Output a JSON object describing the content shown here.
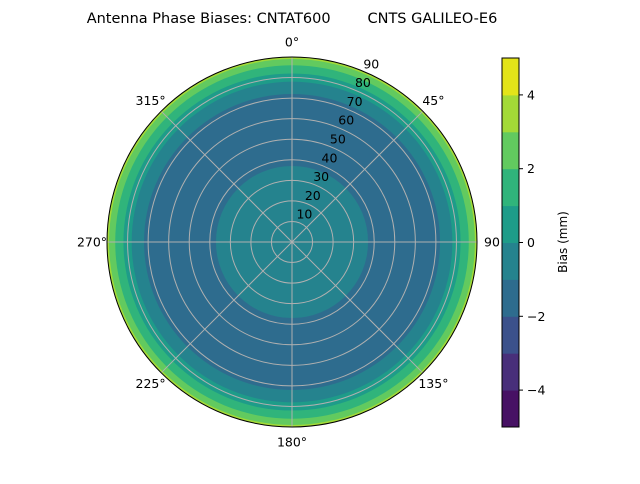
{
  "chart_data": {
    "type": "heatmap",
    "projection": "polar",
    "title": "Antenna Phase Biases: CNTAT600        CNTS GALILEO-E6",
    "theta_direction": "clockwise",
    "theta_zero": "top",
    "theta_ticks": [
      "0°",
      "45°",
      "90",
      "135°",
      "180°",
      "225°",
      "270°",
      "315°"
    ],
    "theta_tick_angles": [
      0,
      45,
      90,
      135,
      180,
      225,
      270,
      315
    ],
    "r_ticks": [
      10,
      20,
      30,
      40,
      50,
      60,
      70,
      80,
      90
    ],
    "rlim": [
      0,
      90
    ],
    "grid": true,
    "colorbar": {
      "label": "Bias (mm)",
      "levels": [
        -5,
        -4,
        -3,
        -2,
        -1,
        0,
        1,
        2,
        3,
        4,
        5
      ],
      "colors": [
        "#471164",
        "#482f7a",
        "#3b518b",
        "#2e6c8e",
        "#25838e",
        "#1e9c89",
        "#30b47b",
        "#62ca5f",
        "#a3da37",
        "#e3e419"
      ],
      "ticks": [
        -4,
        -2,
        0,
        2,
        4
      ],
      "tick_labels": [
        "−4",
        "−2",
        "0",
        "2",
        "4"
      ]
    },
    "zenith_bands": [
      {
        "from": 0,
        "to": 37,
        "level_range": [
          -1,
          0
        ]
      },
      {
        "from": 37,
        "to": 72,
        "level_range": [
          -2,
          -1
        ]
      },
      {
        "from": 72,
        "to": 78,
        "level_range": [
          -1,
          0
        ]
      },
      {
        "from": 78,
        "to": 82,
        "level_range": [
          0,
          1
        ]
      },
      {
        "from": 82,
        "to": 86,
        "level_range": [
          1,
          2
        ]
      },
      {
        "from": 86,
        "to": 89,
        "level_range": [
          2,
          3
        ]
      },
      {
        "from": 89,
        "to": 90,
        "level_range": [
          3,
          4
        ]
      }
    ]
  }
}
